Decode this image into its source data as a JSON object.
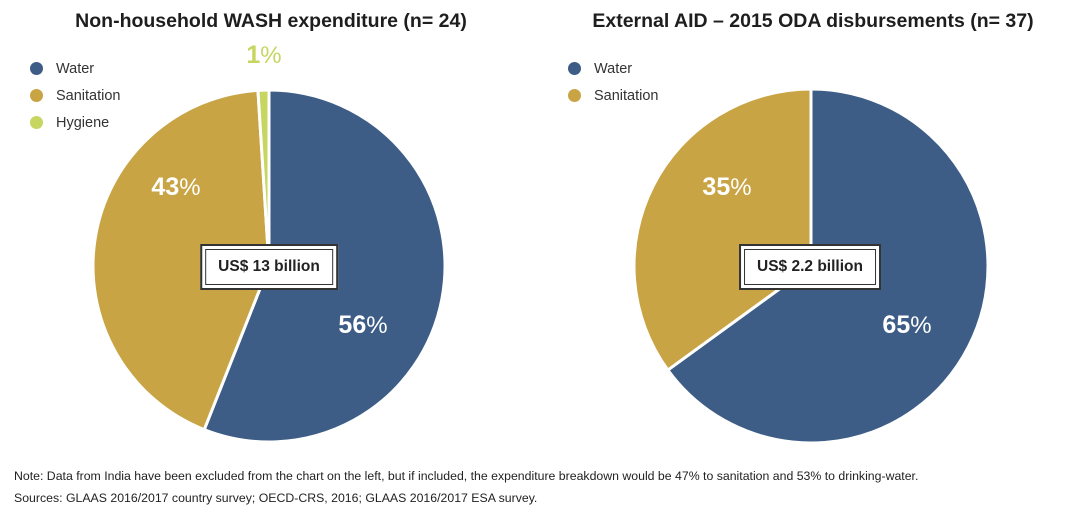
{
  "chart_data": [
    {
      "type": "pie",
      "title": "Non-household WASH expenditure (n= 24)",
      "center_label": "US$ 13 billion",
      "series": [
        {
          "name": "Water",
          "value": 56,
          "label_num": "56",
          "label_sym": "%",
          "color": "#3d5d86",
          "label_color": "#ffffff"
        },
        {
          "name": "Sanitation",
          "value": 43,
          "label_num": "43",
          "label_sym": "%",
          "color": "#c9a445",
          "label_color": "#ffffff"
        },
        {
          "name": "Hygiene",
          "value": 1,
          "label_num": "1",
          "label_sym": "%",
          "color": "#c6d661",
          "label_color": "#c6d661"
        }
      ]
    },
    {
      "type": "pie",
      "title": "External AID – 2015 ODA disbursements (n= 37)",
      "center_label": "US$ 2.2 billion",
      "series": [
        {
          "name": "Water",
          "value": 65,
          "label_num": "65",
          "label_sym": "%",
          "color": "#3d5d86",
          "label_color": "#ffffff"
        },
        {
          "name": "Sanitation",
          "value": 35,
          "label_num": "35",
          "label_sym": "%",
          "color": "#c9a445",
          "label_color": "#ffffff"
        }
      ]
    }
  ],
  "notes": {
    "note": "Note: Data from India have been excluded from the chart on the left, but if included, the expenditure breakdown would be 47% to sanitation and 53% to drinking-water.",
    "sources": "Sources: GLAAS 2016/2017 country survey; OECD-CRS, 2016; GLAAS 2016/2017 ESA survey."
  }
}
